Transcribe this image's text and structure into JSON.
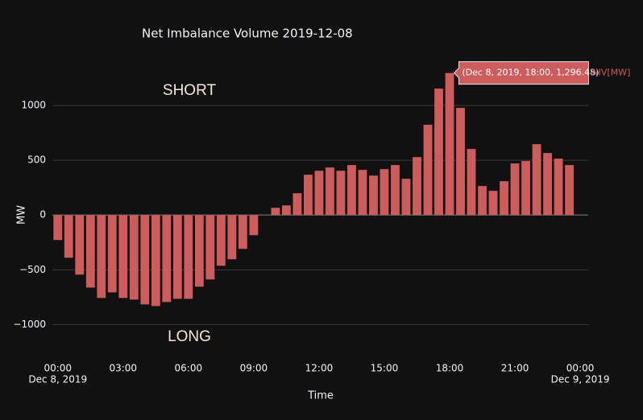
{
  "chart_data": {
    "type": "bar",
    "title": "Net Imbalance Volume   2019-12-08",
    "x_title": "Time",
    "y_title": "MW",
    "annotations": [
      "SHORT",
      "LONG"
    ],
    "hover_label": "(Dec 8, 2019, 18:00, 1,296.48)",
    "x": [
      "2019-12-08 00:00",
      "2019-12-08 00:30",
      "2019-12-08 01:00",
      "2019-12-08 01:30",
      "2019-12-08 02:00",
      "2019-12-08 02:30",
      "2019-12-08 03:00",
      "2019-12-08 03:30",
      "2019-12-08 04:00",
      "2019-12-08 04:30",
      "2019-12-08 05:00",
      "2019-12-08 05:30",
      "2019-12-08 06:00",
      "2019-12-08 06:30",
      "2019-12-08 07:00",
      "2019-12-08 07:30",
      "2019-12-08 08:00",
      "2019-12-08 08:30",
      "2019-12-08 09:00",
      "2019-12-08 09:30",
      "2019-12-08 10:00",
      "2019-12-08 10:30",
      "2019-12-08 11:00",
      "2019-12-08 11:30",
      "2019-12-08 12:00",
      "2019-12-08 12:30",
      "2019-12-08 13:00",
      "2019-12-08 13:30",
      "2019-12-08 14:00",
      "2019-12-08 14:30",
      "2019-12-08 15:00",
      "2019-12-08 15:30",
      "2019-12-08 16:00",
      "2019-12-08 16:30",
      "2019-12-08 17:00",
      "2019-12-08 17:30",
      "2019-12-08 18:00",
      "2019-12-08 18:30",
      "2019-12-08 19:00",
      "2019-12-08 19:30",
      "2019-12-08 20:00",
      "2019-12-08 20:30",
      "2019-12-08 21:00",
      "2019-12-08 21:30",
      "2019-12-08 22:00",
      "2019-12-08 22:30",
      "2019-12-08 23:00",
      "2019-12-08 23:30"
    ],
    "series": [
      {
        "name": "NIV[MW]",
        "color": "#cd5c5c",
        "values": [
          -228,
          -390,
          -544,
          -662,
          -757,
          -706,
          -757,
          -772,
          -816,
          -831,
          -794,
          -765,
          -765,
          -654,
          -588,
          -463,
          -404,
          -309,
          -184,
          0,
          66,
          88,
          199,
          368,
          404,
          434,
          404,
          456,
          412,
          360,
          419,
          456,
          331,
          529,
          824,
          1154,
          1296.48,
          978,
          603,
          265,
          221,
          309,
          471,
          493,
          647,
          566,
          515,
          456
        ]
      }
    ],
    "xlim": [
      "2019-12-07 23:45",
      "2019-12-09 00:22"
    ],
    "xticks": [
      {
        "value": "2019-12-08 00:00",
        "label": "00:00",
        "sublabel": "Dec 8, 2019"
      },
      {
        "value": "2019-12-08 03:00",
        "label": "03:00"
      },
      {
        "value": "2019-12-08 06:00",
        "label": "06:00"
      },
      {
        "value": "2019-12-08 09:00",
        "label": "09:00"
      },
      {
        "value": "2019-12-08 12:00",
        "label": "12:00"
      },
      {
        "value": "2019-12-08 15:00",
        "label": "15:00"
      },
      {
        "value": "2019-12-08 18:00",
        "label": "18:00"
      },
      {
        "value": "2019-12-08 21:00",
        "label": "21:00"
      },
      {
        "value": "2019-12-09 00:00",
        "label": "00:00",
        "sublabel": "Dec 9, 2019"
      }
    ],
    "ylim": [
      -1210,
      1375
    ],
    "yticks": [
      {
        "value": -1000,
        "label": "−1000"
      },
      {
        "value": -500,
        "label": "−500"
      },
      0,
      500,
      1000
    ],
    "grid": true
  }
}
